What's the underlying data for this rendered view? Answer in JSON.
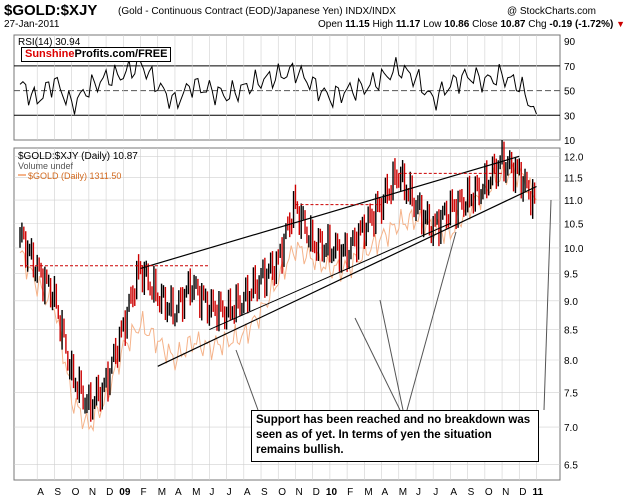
{
  "header": {
    "symbol": "$GOLD:$XJY",
    "description": "(Gold - Continuous Contract (EOD)/Japanese Yen)  INDX/INDX",
    "date": "27-Jan-2011",
    "open_label": "Open",
    "open": "11.15",
    "high_label": "High",
    "high": "11.17",
    "low_label": "Low",
    "low": "10.86",
    "close_label": "Close",
    "close": "10.87",
    "chg_label": "Chg",
    "chg": "-0.19 (-1.72%)",
    "watermark": "@ StockCharts.com"
  },
  "badge": {
    "part1": "Sunshine",
    "part2": "Profits.com/FREE"
  },
  "callout": "Support has been reached and no breakdown was seen as of yet. In terms of yen the situation remains bullish.",
  "colors": {
    "price": "#000000",
    "price_down": "#cc0000",
    "gold": "#f5b38a",
    "rsi_line": "#000000",
    "grid": "#d0d0d0",
    "resistance": "#cc0000"
  },
  "chart_data": [
    {
      "type": "line",
      "title": "RSI(14) 30.94",
      "y_ticks": [
        10,
        30,
        50,
        70,
        90
      ],
      "reference_lines": [
        30,
        50,
        70
      ],
      "ylim": [
        10,
        95
      ],
      "x": [
        "2008-07",
        "2008-08",
        "2008-09",
        "2008-10",
        "2008-11",
        "2008-12",
        "2009-01",
        "2009-02",
        "2009-03",
        "2009-04",
        "2009-05",
        "2009-06",
        "2009-07",
        "2009-08",
        "2009-09",
        "2009-10",
        "2009-11",
        "2009-12",
        "2010-01",
        "2010-02",
        "2010-03",
        "2010-04",
        "2010-05",
        "2010-06",
        "2010-07",
        "2010-08",
        "2010-09",
        "2010-10",
        "2010-11",
        "2010-12",
        "2011-01"
      ],
      "values": [
        55,
        42,
        58,
        38,
        52,
        60,
        63,
        72,
        54,
        40,
        55,
        50,
        46,
        52,
        58,
        62,
        66,
        55,
        44,
        50,
        52,
        60,
        68,
        60,
        42,
        55,
        62,
        58,
        62,
        55,
        31
      ]
    },
    {
      "type": "line",
      "legend": [
        "$GOLD:$XJY (Daily) 10.87",
        "Volume undef",
        "$GOLD (Daily) 1311.50"
      ],
      "x_tick_labels": [
        "A",
        "S",
        "O",
        "N",
        "D",
        "09",
        "F",
        "M",
        "A",
        "M",
        "J",
        "J",
        "A",
        "S",
        "O",
        "N",
        "D",
        "10",
        "F",
        "M",
        "A",
        "M",
        "J",
        "J",
        "A",
        "S",
        "O",
        "N",
        "D",
        "11"
      ],
      "y_ticks": [
        6.5,
        7.0,
        7.5,
        8.0,
        8.5,
        9.0,
        9.5,
        10.0,
        10.5,
        11.0,
        11.5,
        12.0
      ],
      "ylim": [
        6.3,
        12.2
      ],
      "log_scale": true,
      "grid": true,
      "series": [
        {
          "name": "$GOLD:$XJY (Daily) 10.87",
          "x": [
            "2008-07",
            "2008-08",
            "2008-09",
            "2008-10",
            "2008-11",
            "2008-12",
            "2009-01",
            "2009-02",
            "2009-03",
            "2009-04",
            "2009-05",
            "2009-06",
            "2009-07",
            "2009-08",
            "2009-09",
            "2009-10",
            "2009-11",
            "2009-12",
            "2010-01",
            "2010-02",
            "2010-03",
            "2010-04",
            "2010-05",
            "2010-06",
            "2010-07",
            "2010-08",
            "2010-09",
            "2010-10",
            "2010-11",
            "2010-12",
            "2011-01"
          ],
          "values": [
            10.3,
            9.6,
            9.1,
            7.8,
            7.3,
            7.6,
            8.5,
            9.6,
            9.1,
            8.8,
            9.3,
            8.9,
            8.8,
            9.0,
            9.4,
            9.7,
            10.9,
            10.1,
            10.0,
            9.9,
            10.4,
            10.9,
            11.6,
            10.9,
            10.4,
            10.8,
            11.0,
            11.3,
            11.9,
            11.6,
            10.9
          ]
        },
        {
          "name": "$GOLD (Daily) 1311.50",
          "x": [
            "2008-07",
            "2008-08",
            "2008-09",
            "2008-10",
            "2008-11",
            "2008-12",
            "2009-01",
            "2009-02",
            "2009-03",
            "2009-04",
            "2009-05",
            "2009-06",
            "2009-07",
            "2009-08",
            "2009-09",
            "2009-10",
            "2009-11",
            "2009-12",
            "2010-01",
            "2010-02",
            "2010-03",
            "2010-04",
            "2010-05",
            "2010-06",
            "2010-07",
            "2010-08",
            "2010-09",
            "2010-10",
            "2010-11",
            "2010-12",
            "2011-01"
          ],
          "values": [
            9.9,
            9.3,
            8.9,
            7.4,
            7.0,
            7.4,
            8.2,
            8.6,
            8.3,
            8.0,
            8.3,
            8.2,
            8.3,
            8.4,
            8.8,
            9.4,
            10.0,
            9.8,
            9.6,
            9.6,
            9.9,
            10.2,
            10.5,
            10.6,
            10.4,
            10.3,
            10.8,
            11.2,
            11.6,
            11.6,
            11.0
          ]
        }
      ],
      "annotations": {
        "upper_channel": [
          [
            "2009-02",
            9.6
          ],
          [
            "2010-12",
            12.0
          ]
        ],
        "lower_channel": [
          [
            "2009-03",
            7.9
          ],
          [
            "2011-01",
            11.3
          ]
        ],
        "support_segment": [
          [
            "2009-06",
            8.5
          ],
          [
            "2010-08",
            10.5
          ]
        ],
        "resistance_levels": [
          {
            "from": "2008-07",
            "to": "2009-06",
            "value": 9.65
          },
          {
            "from": "2009-11",
            "to": "2010-04",
            "value": 10.9
          },
          {
            "from": "2010-05",
            "to": "2010-11",
            "value": 11.6
          }
        ]
      }
    }
  ]
}
